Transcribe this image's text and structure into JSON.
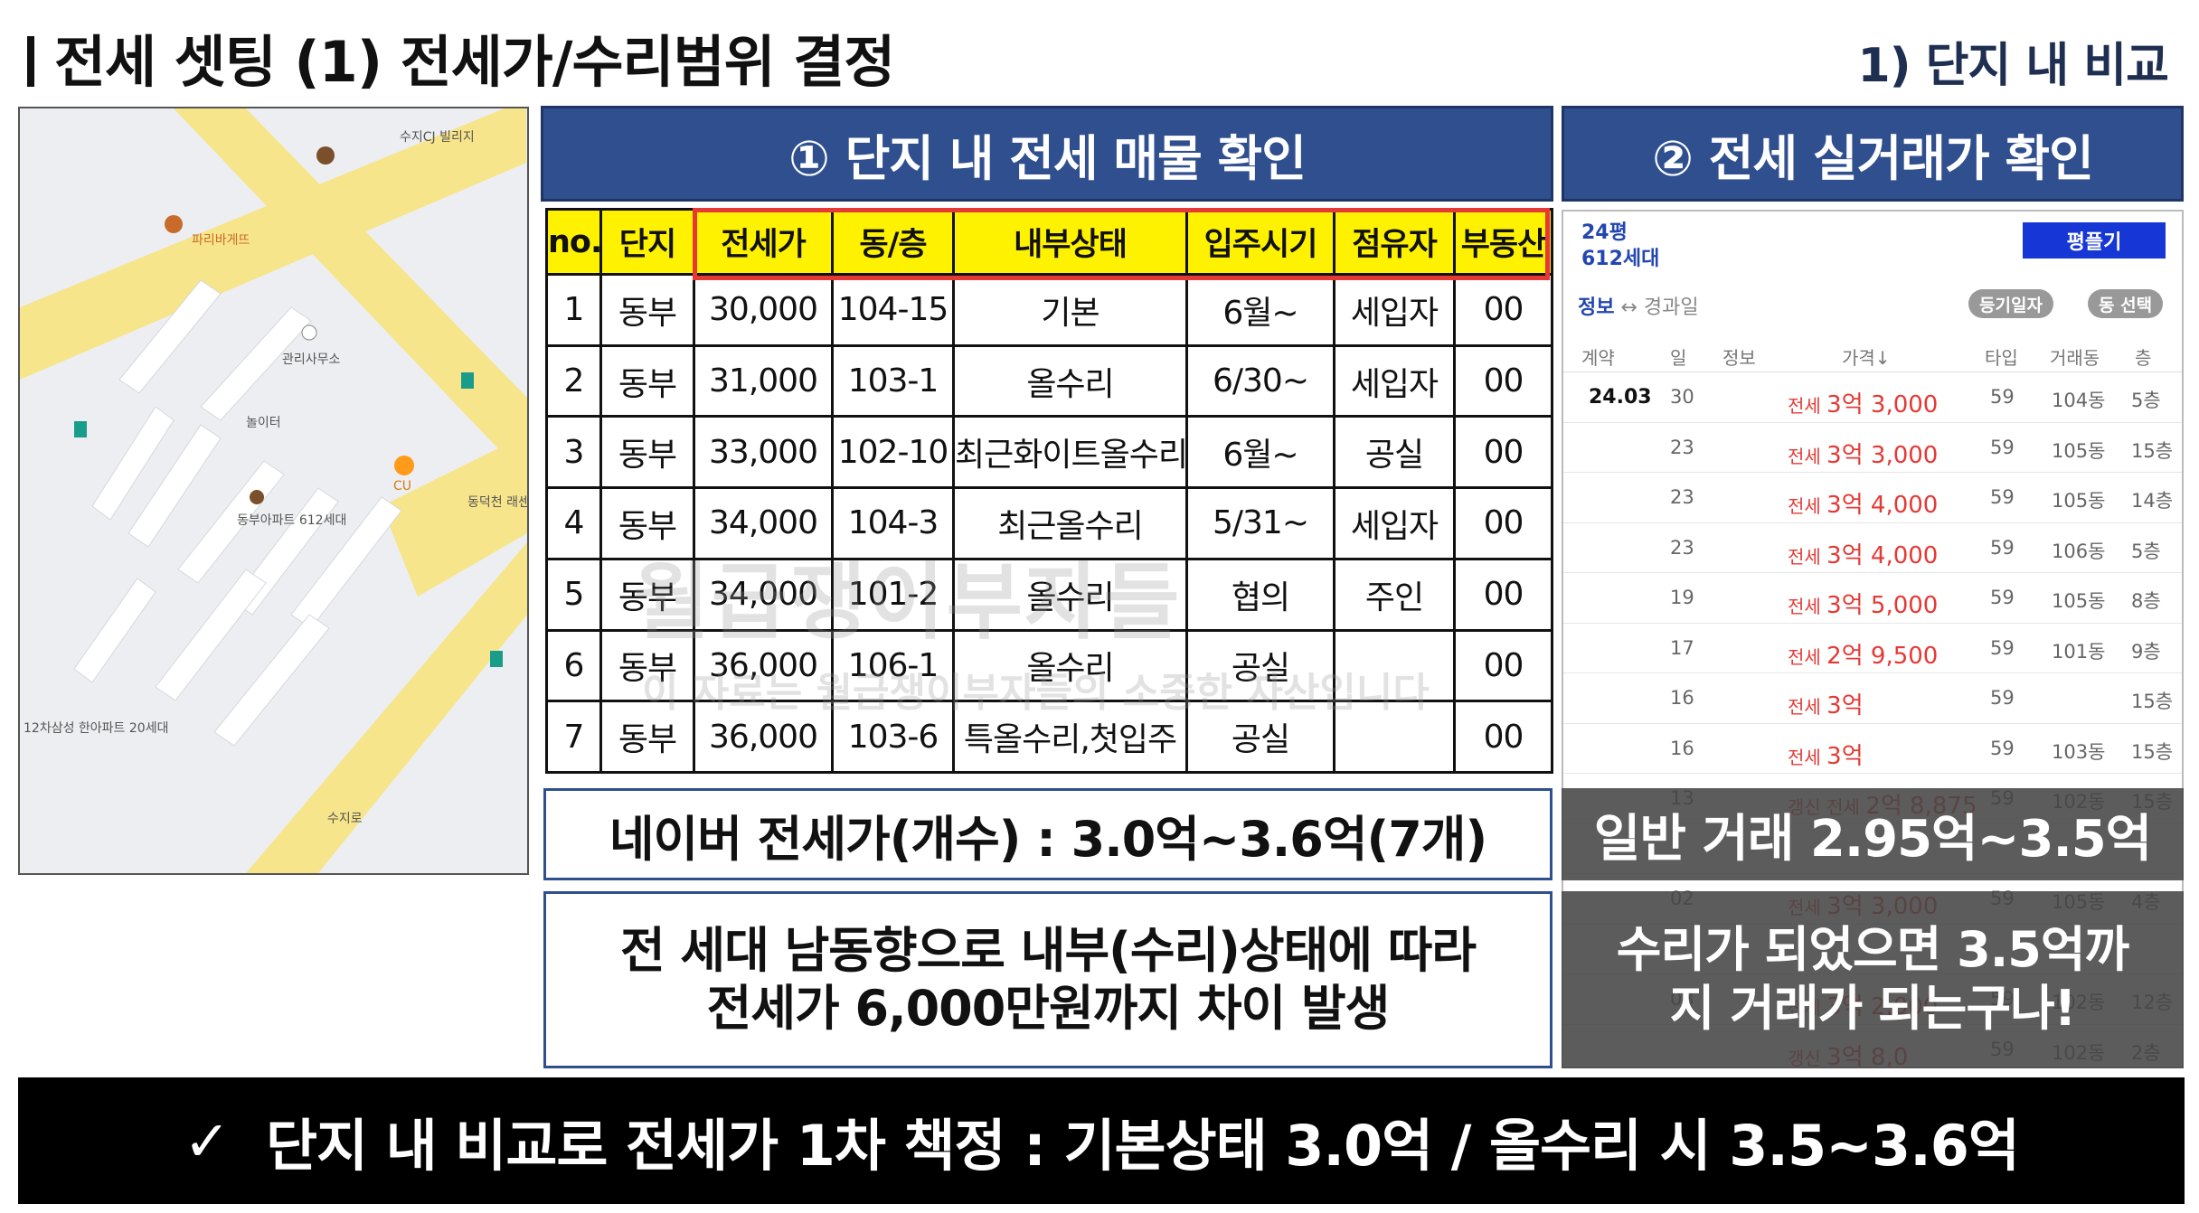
{
  "header": {
    "title": "전세 셋팅 (1) 전세가/수리범위 결정",
    "section": "1) 단지 내 비교"
  },
  "map": {
    "labels": [
      "수지CJ 빌리지",
      "파리바게뜨",
      "관리사무소",
      "CU",
      "동부아파트 612세대",
      "놀이터",
      "동덕천 래센",
      "12차삼성 한아파트 20세대",
      "수지로"
    ]
  },
  "panel1": {
    "title": "① 단지 내 전세 매물 확인"
  },
  "panel2": {
    "title": "② 전세 실거래가 확인"
  },
  "listing": {
    "headers": [
      "no.",
      "단지",
      "전세가",
      "동/층",
      "내부상태",
      "입주시기",
      "점유자",
      "부동산"
    ],
    "rows": [
      [
        "1",
        "동부",
        "30,000",
        "104-15",
        "기본",
        "6월~",
        "세입자",
        "00"
      ],
      [
        "2",
        "동부",
        "31,000",
        "103-1",
        "올수리",
        "6/30~",
        "세입자",
        "00"
      ],
      [
        "3",
        "동부",
        "33,000",
        "102-10",
        "최근화이트올수리",
        "6월~",
        "공실",
        "00"
      ],
      [
        "4",
        "동부",
        "34,000",
        "104-3",
        "최근올수리",
        "5/31~",
        "세입자",
        "00"
      ],
      [
        "5",
        "동부",
        "34,000",
        "101-2",
        "올수리",
        "협의",
        "주인",
        "00"
      ],
      [
        "6",
        "동부",
        "36,000",
        "106-1",
        "올수리",
        "공실",
        "",
        "00"
      ],
      [
        "7",
        "동부",
        "36,000",
        "103-6",
        "특올수리,첫입주",
        "공실",
        "",
        "00"
      ]
    ]
  },
  "watermark": {
    "main": "월급쟁이부자들",
    "sub": "이 자료는 월급쟁이부자들의 소중한 자산입니다"
  },
  "summary": {
    "naver": "네이버 전세가(개수) : 3.0억~3.6억(7개)",
    "note_line1": "전 세대 남동향으로 내부(수리)상태에 따라",
    "note_line2": "전세가 6,000만원까지 차이 발생"
  },
  "transactions": {
    "size": "24평",
    "households": "612세대",
    "button": "평플기",
    "tab_info": "정보",
    "tab_arrow": "↔",
    "tab_elapsed": "경과일",
    "filter1": "등기일자",
    "filter2": "동 선택",
    "columns": [
      "계약",
      "일",
      "정보",
      "가격↓",
      "타입",
      "거래동",
      "층"
    ],
    "rows": [
      {
        "month": "24.03",
        "day": "30",
        "kind": "전세",
        "price": "3억 3,000",
        "type": "59",
        "bldg": "104동",
        "floor": "5층"
      },
      {
        "month": "",
        "day": "23",
        "kind": "전세",
        "price": "3억 3,000",
        "type": "59",
        "bldg": "105동",
        "floor": "15층"
      },
      {
        "month": "",
        "day": "23",
        "kind": "전세",
        "price": "3억 4,000",
        "type": "59",
        "bldg": "105동",
        "floor": "14층"
      },
      {
        "month": "",
        "day": "23",
        "kind": "전세",
        "price": "3억 4,000",
        "type": "59",
        "bldg": "106동",
        "floor": "5층"
      },
      {
        "month": "",
        "day": "19",
        "kind": "전세",
        "price": "3억 5,000",
        "type": "59",
        "bldg": "105동",
        "floor": "8층"
      },
      {
        "month": "",
        "day": "17",
        "kind": "전세",
        "price": "2억 9,500",
        "type": "59",
        "bldg": "101동",
        "floor": "9층"
      },
      {
        "month": "",
        "day": "16",
        "kind": "전세",
        "price": "3억",
        "type": "59",
        "bldg": "",
        "floor": "15층"
      },
      {
        "month": "",
        "day": "16",
        "kind": "전세",
        "price": "3억",
        "type": "59",
        "bldg": "103동",
        "floor": "15층"
      },
      {
        "month": "",
        "day": "13",
        "kind": "갱신 전세",
        "price": "2억 8,875",
        "type": "59",
        "bldg": "102동",
        "floor": "15층"
      },
      {
        "month": "",
        "day": "",
        "kind": "",
        "price": "",
        "type": "",
        "bldg": "",
        "floor": ""
      },
      {
        "month": "",
        "day": "02",
        "kind": "전세",
        "price": "3억 3,000",
        "type": "59",
        "bldg": "105동",
        "floor": "4층"
      },
      {
        "month": "",
        "day": "",
        "kind": "",
        "price": "",
        "type": "",
        "bldg": "",
        "floor": ""
      },
      {
        "month": "",
        "day": "03",
        "kind": "전세",
        "price": "3억 2,000",
        "type": "59",
        "bldg": "102동",
        "floor": "12층"
      },
      {
        "month": "",
        "day": "",
        "kind": "갱신",
        "price": "3억 8,0",
        "type": "59",
        "bldg": "102동",
        "floor": "2층"
      }
    ]
  },
  "overlay": {
    "normal": "일반 거래 2.95억~3.5억",
    "line1": "수리가 되었으면 3.5억까",
    "line2": "지 거래가 되는구나!"
  },
  "bottom": {
    "check": "✓",
    "text": "단지 내 비교로 전세가 1차 책정 : 기본상태 3.0억 / 올수리 시 3.5~3.6억"
  }
}
